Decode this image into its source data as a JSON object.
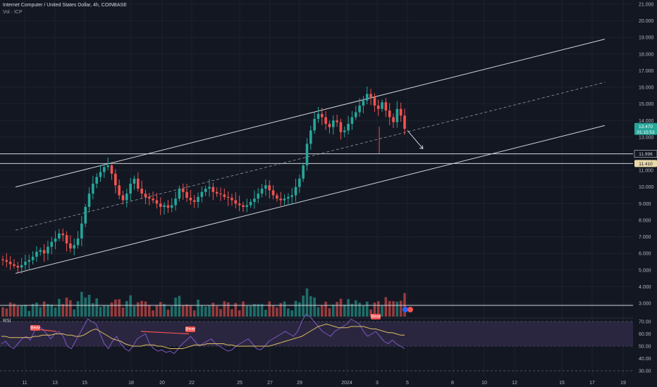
{
  "header": {
    "title": "Internet Computer / United States Dollar, 4h, COINBASE",
    "volume_label": "Vol · ICP",
    "rsi_label": "RSI"
  },
  "badges": {
    "price_tag_top": "13.470",
    "price_tag_bottom": "01:15:53",
    "level_1": "11.996",
    "level_2": "11.410",
    "rsi_bear": "Bear"
  },
  "colors": {
    "background": "#131722",
    "up": "#26a69a",
    "down": "#ef5350",
    "rsi_line": "#7e57c2",
    "rsi_ma": "#e0c060",
    "rsi_band": "#2a2640"
  },
  "chart_data": {
    "type": "candlestick",
    "title": "Internet Computer / United States Dollar, 4h, COINBASE",
    "y_axis": {
      "ticks": [
        3.0,
        4.0,
        5.0,
        6.0,
        7.0,
        8.0,
        9.0,
        10.0,
        11.0,
        12.0,
        13.0,
        14.0,
        15.0,
        16.0,
        17.0,
        18.0,
        19.0,
        20.0,
        21.0
      ],
      "tick_labels": [
        "3.000",
        "4.000",
        "5.000",
        "6.000",
        "7.000",
        "8.000",
        "9.000",
        "10.000",
        "11.000",
        "12.000",
        "13.000",
        "14.000",
        "15.000",
        "16.000",
        "17.000",
        "18.000",
        "19.000",
        "20.000",
        "21.000"
      ],
      "range": [
        2.5,
        21.2
      ]
    },
    "x_axis": {
      "ticks": [
        "11",
        "13",
        "15",
        "18",
        "20",
        "22",
        "25",
        "27",
        "29",
        "2024",
        "3",
        "5",
        "8",
        "10",
        "12",
        "15",
        "17",
        "19"
      ]
    },
    "horizontal_levels": [
      11.996,
      11.41
    ],
    "current_price": 13.47,
    "channel": {
      "upper_line": "from ~10.0 (Dec 10) to ~18.9 (Jan 17)",
      "lower_line": "from ~4.8 (Dec 10) to ~13.7 (Jan 17)"
    },
    "price_path": [
      5.6,
      5.5,
      5.35,
      5.25,
      5.15,
      5.3,
      5.5,
      5.6,
      5.8,
      6.1,
      6.2,
      6.0,
      6.4,
      6.7,
      6.9,
      7.2,
      7.1,
      6.6,
      6.3,
      6.5,
      6.9,
      7.8,
      8.8,
      9.6,
      10.2,
      10.6,
      10.9,
      11.2,
      11.3,
      10.8,
      10.1,
      9.5,
      9.2,
      9.6,
      10.2,
      10.5,
      9.9,
      9.6,
      9.4,
      9.3,
      9.2,
      9.0,
      8.8,
      8.9,
      8.75,
      8.9,
      9.3,
      9.9,
      9.7,
      9.35,
      9.2,
      9.1,
      9.4,
      9.7,
      9.9,
      10.0,
      9.7,
      9.6,
      9.55,
      9.4,
      9.35,
      9.2,
      9.0,
      8.9,
      8.8,
      8.9,
      9.1,
      9.3,
      9.6,
      9.9,
      10.1,
      9.8,
      9.5,
      9.3,
      9.2,
      9.3,
      9.4,
      9.5,
      10.0,
      10.5,
      11.3,
      12.6,
      13.4,
      14.1,
      14.4,
      14.2,
      13.8,
      13.6,
      14.0,
      13.9,
      13.3,
      13.4,
      13.8,
      14.2,
      14.5,
      14.9,
      15.2,
      15.6,
      15.4,
      14.9,
      14.7,
      15.1,
      14.6,
      14.2,
      13.9,
      14.7,
      14.3,
      13.5
    ]
  }
}
